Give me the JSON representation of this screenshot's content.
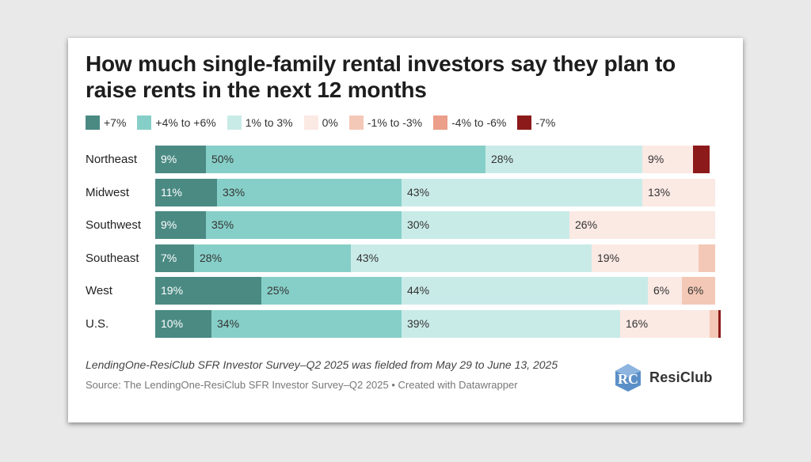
{
  "chart_data": {
    "type": "bar",
    "orientation": "horizontal",
    "stacked": true,
    "title": "How much single-family rental investors say they plan to raise rents in the next 12 months",
    "categories": [
      "Northeast",
      "Midwest",
      "Southwest",
      "Southeast",
      "West",
      "U.S."
    ],
    "series": [
      {
        "name": "+7%",
        "color": "#4a8a83",
        "values": [
          9,
          11,
          9,
          7,
          19,
          10
        ],
        "labels": [
          "9%",
          "11%",
          "9%",
          "7%",
          "19%",
          "10%"
        ]
      },
      {
        "name": "+4% to +6%",
        "color": "#86cfc8",
        "values": [
          50,
          33,
          35,
          28,
          25,
          34
        ],
        "labels": [
          "50%",
          "33%",
          "35%",
          "28%",
          "25%",
          "34%"
        ]
      },
      {
        "name": "1% to 3%",
        "color": "#c9ebe8",
        "values": [
          28,
          43,
          30,
          43,
          44,
          39
        ],
        "labels": [
          "28%",
          "43%",
          "30%",
          "43%",
          "44%",
          "39%"
        ]
      },
      {
        "name": "0%",
        "color": "#fbe9e4",
        "values": [
          9,
          13,
          26,
          19,
          6,
          16
        ],
        "labels": [
          "9%",
          "13%",
          "26%",
          "19%",
          "6%",
          "16%"
        ]
      },
      {
        "name": "-1% to -3%",
        "color": "#f4c8b6",
        "values": [
          0,
          0,
          0,
          3,
          6,
          1.5
        ],
        "labels": [
          "",
          "",
          "",
          "",
          "6%",
          ""
        ]
      },
      {
        "name": "-4% to -6%",
        "color": "#eb9e8a",
        "values": [
          0,
          0,
          0,
          0,
          0,
          0
        ],
        "labels": [
          "",
          "",
          "",
          "",
          "",
          ""
        ]
      },
      {
        "name": "-7%",
        "color": "#8d1a1a",
        "values": [
          3,
          0,
          0,
          0,
          0,
          0.5
        ],
        "labels": [
          "",
          "",
          "",
          "",
          "",
          ""
        ]
      }
    ],
    "xlim": [
      0,
      100
    ],
    "legend": "top",
    "grid": false
  },
  "footer": {
    "note": "LendingOne-ResiClub SFR Investor Survey–Q2 2025 was fielded from May 29 to June 13, 2025",
    "source": "Source: The LendingOne-ResiClub SFR Investor Survey–Q2 2025 • Created with Datawrapper"
  },
  "logo": {
    "text": "ResiClub",
    "mark": "RC"
  }
}
